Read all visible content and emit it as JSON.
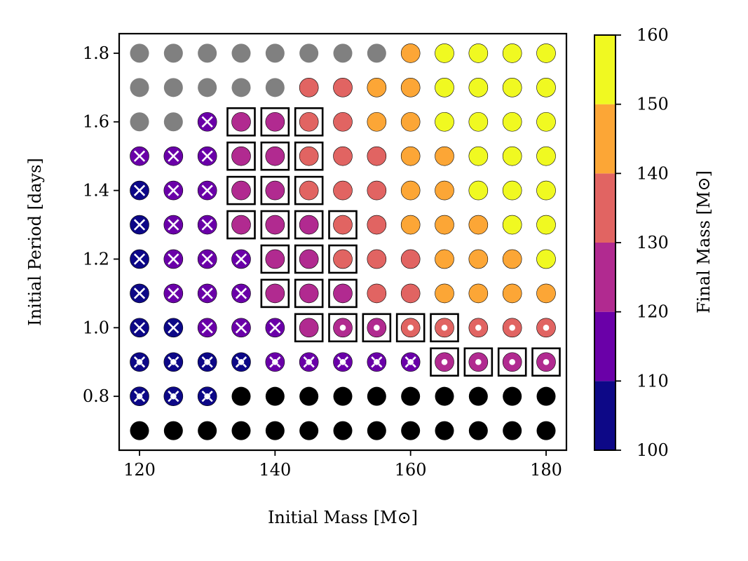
{
  "chart_data": {
    "type": "scatter",
    "xlabel": "Initial Mass [M⊙]",
    "ylabel": "Initial Period [days]",
    "xlim": [
      117,
      183
    ],
    "ylim": [
      0.643,
      1.857
    ],
    "x_ticks": [
      120,
      140,
      160,
      180
    ],
    "x_tick_labels": [
      "120",
      "140",
      "160",
      "180"
    ],
    "y_ticks": [
      0.8,
      1.0,
      1.2,
      1.4,
      1.6,
      1.8
    ],
    "y_tick_labels": [
      "0.8",
      "1.0",
      "1.2",
      "1.4",
      "1.6",
      "1.8"
    ],
    "colorbar": {
      "label": "Final Mass [M⊙]",
      "range": [
        100,
        160
      ],
      "bins": [
        {
          "from": 100,
          "to": 110,
          "color": "#0d0887"
        },
        {
          "from": 110,
          "to": 120,
          "color": "#6a00a8"
        },
        {
          "from": 120,
          "to": 130,
          "color": "#b12a90"
        },
        {
          "from": 130,
          "to": 140,
          "color": "#e16462"
        },
        {
          "from": 140,
          "to": 150,
          "color": "#fca636"
        },
        {
          "from": 150,
          "to": 160,
          "color": "#f0f921"
        }
      ],
      "ticks": [
        100,
        110,
        120,
        130,
        140,
        150,
        160
      ],
      "tick_labels": [
        "100",
        "110",
        "120",
        "130",
        "140",
        "150",
        "160"
      ]
    },
    "masses": [
      120,
      125,
      130,
      135,
      140,
      145,
      150,
      155,
      160,
      165,
      170,
      175,
      180
    ],
    "periods": [
      1.8,
      1.7,
      1.6,
      1.5,
      1.4,
      1.3,
      1.2,
      1.1,
      1.0,
      0.9,
      0.8,
      0.7
    ],
    "legend_codes": {
      "G": "gray marker (no final mass)",
      "K": "black marker (no final mass)",
      "1": "final mass 100-110",
      "2": "final mass 110-120",
      "3": "final mass 120-130",
      "4": "final mass 130-140",
      "5": "final mass 140-150",
      "6": "final mass 150-160",
      "x": "cross overlay",
      "o": "white dot overlay",
      "xo": "cross + white dot overlay",
      "b": "square box outline"
    },
    "grid": [
      [
        "G",
        "G",
        "G",
        "G",
        "G",
        "G",
        "G",
        "G",
        "5",
        "6",
        "6",
        "6",
        "6"
      ],
      [
        "G",
        "G",
        "G",
        "G",
        "G",
        "4",
        "4",
        "5",
        "5",
        "6",
        "6",
        "6",
        "6"
      ],
      [
        "G",
        "G",
        "2x",
        "3b",
        "3b",
        "4b",
        "4",
        "5",
        "5",
        "6",
        "6",
        "6",
        "6"
      ],
      [
        "2x",
        "2x",
        "2x",
        "3b",
        "3b",
        "4b",
        "4",
        "4",
        "5",
        "5",
        "6",
        "6",
        "6"
      ],
      [
        "1x",
        "2x",
        "2x",
        "3b",
        "3b",
        "4b",
        "4",
        "4",
        "5",
        "5",
        "6",
        "6",
        "6"
      ],
      [
        "1x",
        "2x",
        "2x",
        "3b",
        "3b",
        "3b",
        "4b",
        "4",
        "5",
        "5",
        "5",
        "6",
        "6"
      ],
      [
        "1x",
        "2x",
        "2x",
        "2x",
        "3b",
        "3b",
        "4b",
        "4",
        "4",
        "5",
        "5",
        "5",
        "6"
      ],
      [
        "1x",
        "2x",
        "2x",
        "2x",
        "3b",
        "3b",
        "3b",
        "4",
        "4",
        "5",
        "5",
        "5",
        "5"
      ],
      [
        "1x",
        "1x",
        "2x",
        "2x",
        "2x",
        "3b",
        "3ob",
        "3ob",
        "4ob",
        "4ob",
        "4o",
        "4o",
        "4o"
      ],
      [
        "1xo",
        "1xo",
        "1xo",
        "1xo",
        "2xo",
        "2xo",
        "2xo",
        "2xo",
        "2xo",
        "3ob",
        "3ob",
        "3ob",
        "3ob"
      ],
      [
        "1xo",
        "1xo",
        "1xo",
        "K",
        "K",
        "K",
        "K",
        "K",
        "K",
        "K",
        "K",
        "K",
        "K"
      ],
      [
        "K",
        "K",
        "K",
        "K",
        "K",
        "K",
        "K",
        "K",
        "K",
        "K",
        "K",
        "K",
        "K"
      ]
    ]
  }
}
